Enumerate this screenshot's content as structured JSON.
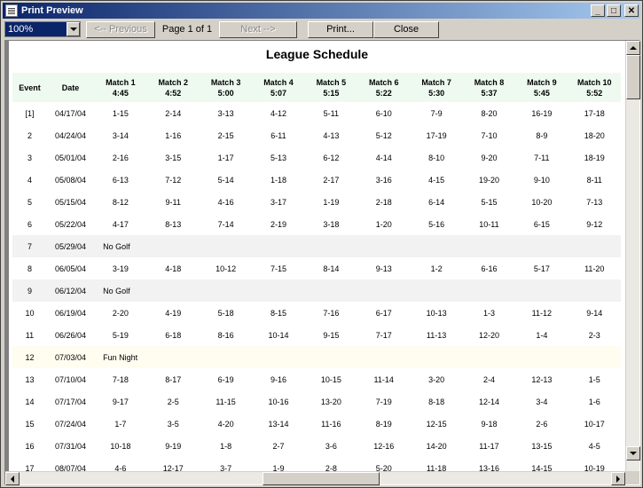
{
  "window": {
    "title": "Print Preview"
  },
  "toolbar": {
    "zoom_value": "100%",
    "previous_label": "<-- Previous",
    "page_info": "Page 1 of 1",
    "next_label": "Next -->",
    "print_label": "Print...",
    "close_label": "Close"
  },
  "report": {
    "title": "League Schedule",
    "headers": [
      [
        "Event",
        ""
      ],
      [
        "Date",
        ""
      ],
      [
        "Match 1",
        "4:45"
      ],
      [
        "Match 2",
        "4:52"
      ],
      [
        "Match 3",
        "5:00"
      ],
      [
        "Match 4",
        "5:07"
      ],
      [
        "Match 5",
        "5:15"
      ],
      [
        "Match 6",
        "5:22"
      ],
      [
        "Match 7",
        "5:30"
      ],
      [
        "Match 8",
        "5:37"
      ],
      [
        "Match 9",
        "5:45"
      ],
      [
        "Match 10",
        "5:52"
      ]
    ],
    "rows": [
      {
        "event": "[1]",
        "date": "04/17/04",
        "matches": [
          "1-15",
          "2-14",
          "3-13",
          "4-12",
          "5-11",
          "6-10",
          "7-9",
          "8-20",
          "16-19",
          "17-18"
        ]
      },
      {
        "event": "2",
        "date": "04/24/04",
        "matches": [
          "3-14",
          "1-16",
          "2-15",
          "6-11",
          "4-13",
          "5-12",
          "17-19",
          "7-10",
          "8-9",
          "18-20"
        ]
      },
      {
        "event": "3",
        "date": "05/01/04",
        "matches": [
          "2-16",
          "3-15",
          "1-17",
          "5-13",
          "6-12",
          "4-14",
          "8-10",
          "9-20",
          "7-11",
          "18-19"
        ]
      },
      {
        "event": "4",
        "date": "05/08/04",
        "matches": [
          "6-13",
          "7-12",
          "5-14",
          "1-18",
          "2-17",
          "3-16",
          "4-15",
          "19-20",
          "9-10",
          "8-11"
        ]
      },
      {
        "event": "5",
        "date": "05/15/04",
        "matches": [
          "8-12",
          "9-11",
          "4-16",
          "3-17",
          "1-19",
          "2-18",
          "6-14",
          "5-15",
          "10-20",
          "7-13"
        ]
      },
      {
        "event": "6",
        "date": "05/22/04",
        "matches": [
          "4-17",
          "8-13",
          "7-14",
          "2-19",
          "3-18",
          "1-20",
          "5-16",
          "10-11",
          "6-15",
          "9-12"
        ]
      },
      {
        "event": "7",
        "date": "05/29/04",
        "note": "No Golf",
        "type": "nogolf"
      },
      {
        "event": "8",
        "date": "06/05/04",
        "matches": [
          "3-19",
          "4-18",
          "10-12",
          "7-15",
          "8-14",
          "9-13",
          "1-2",
          "6-16",
          "5-17",
          "11-20"
        ]
      },
      {
        "event": "9",
        "date": "06/12/04",
        "note": "No Golf",
        "type": "nogolf"
      },
      {
        "event": "10",
        "date": "06/19/04",
        "matches": [
          "2-20",
          "4-19",
          "5-18",
          "8-15",
          "7-16",
          "6-17",
          "10-13",
          "1-3",
          "11-12",
          "9-14"
        ]
      },
      {
        "event": "11",
        "date": "06/26/04",
        "matches": [
          "5-19",
          "6-18",
          "8-16",
          "10-14",
          "9-15",
          "7-17",
          "11-13",
          "12-20",
          "1-4",
          "2-3"
        ]
      },
      {
        "event": "12",
        "date": "07/03/04",
        "note": "Fun Night",
        "type": "funnight"
      },
      {
        "event": "13",
        "date": "07/10/04",
        "matches": [
          "7-18",
          "8-17",
          "6-19",
          "9-16",
          "10-15",
          "11-14",
          "3-20",
          "2-4",
          "12-13",
          "1-5"
        ]
      },
      {
        "event": "14",
        "date": "07/17/04",
        "matches": [
          "9-17",
          "2-5",
          "11-15",
          "10-16",
          "13-20",
          "7-19",
          "8-18",
          "12-14",
          "3-4",
          "1-6"
        ]
      },
      {
        "event": "15",
        "date": "07/24/04",
        "matches": [
          "1-7",
          "3-5",
          "4-20",
          "13-14",
          "11-16",
          "8-19",
          "12-15",
          "9-18",
          "2-6",
          "10-17"
        ]
      },
      {
        "event": "16",
        "date": "07/31/04",
        "matches": [
          "10-18",
          "9-19",
          "1-8",
          "2-7",
          "3-6",
          "12-16",
          "14-20",
          "11-17",
          "13-15",
          "4-5"
        ]
      },
      {
        "event": "17",
        "date": "08/07/04",
        "matches": [
          "4-6",
          "12-17",
          "3-7",
          "1-9",
          "2-8",
          "5-20",
          "11-18",
          "13-16",
          "14-15",
          "10-19"
        ]
      }
    ]
  }
}
